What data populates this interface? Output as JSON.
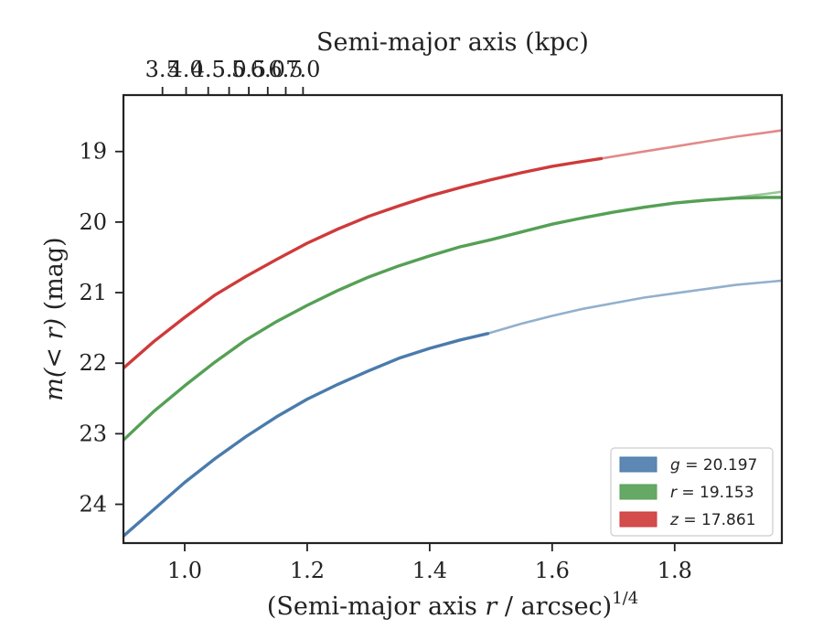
{
  "chart_data": {
    "type": "line",
    "xlabel": "(Semi-major axis r / arcsec)1/4",
    "xlabel_parts": {
      "pre": "(Semi-major axis ",
      "var": "r",
      "post": " / arcsec)",
      "sup": "1/4"
    },
    "ylabel": "m(< r) (mag)",
    "ylabel_parts": {
      "math": "m(< r)",
      "unit": " (mag)"
    },
    "top_xlabel": "Semi-major axis (kpc)",
    "xlim": [
      0.9,
      1.975
    ],
    "ylim": [
      24.55,
      18.2
    ],
    "x_ticks": [
      1.0,
      1.2,
      1.4,
      1.6,
      1.8
    ],
    "x_tick_labels": [
      "1.0",
      "1.2",
      "1.4",
      "1.6",
      "1.8"
    ],
    "y_ticks": [
      19,
      20,
      21,
      22,
      23,
      24
    ],
    "y_tick_labels": [
      "19",
      "20",
      "21",
      "22",
      "23",
      "24"
    ],
    "top_ticks": [
      3.5,
      4.0,
      4.5,
      5.0,
      5.5,
      6.0,
      6.5,
      7.0
    ],
    "top_tick_labels": [
      "3.5",
      "4.0",
      "4.5",
      "5.0",
      "5.5",
      "6.0",
      "6.5",
      "7.0"
    ],
    "top_tick_x_values": [
      0.9637,
      1.0023,
      1.0384,
      1.0725,
      1.1047,
      1.1356,
      1.165,
      1.1932
    ],
    "grid": false,
    "legend_position": "lower right",
    "series": [
      {
        "name": "g = 20.197",
        "band": "g",
        "value": "20.197",
        "color": "#4a7bab",
        "x": [
          0.9,
          0.95,
          1.0,
          1.05,
          1.1,
          1.15,
          1.2,
          1.25,
          1.3,
          1.35,
          1.4,
          1.45,
          1.495
        ],
        "y": [
          24.45,
          24.07,
          23.69,
          23.35,
          23.04,
          22.76,
          22.51,
          22.3,
          22.11,
          21.93,
          21.79,
          21.67,
          21.58
        ],
        "x_ext": [
          1.495,
          1.55,
          1.6,
          1.65,
          1.7,
          1.75,
          1.8,
          1.85,
          1.9,
          1.95,
          1.975
        ],
        "y_ext": [
          21.58,
          21.44,
          21.33,
          21.23,
          21.15,
          21.07,
          21.01,
          20.95,
          20.89,
          20.85,
          20.83
        ]
      },
      {
        "name": "r = 19.153",
        "band": "r",
        "value": "19.153",
        "color": "#55a055",
        "x": [
          0.9,
          0.95,
          1.0,
          1.05,
          1.1,
          1.15,
          1.2,
          1.25,
          1.3,
          1.35,
          1.4,
          1.45,
          1.5,
          1.55,
          1.6,
          1.65,
          1.7,
          1.75,
          1.8,
          1.85,
          1.9,
          1.95,
          1.975
        ],
        "y": [
          23.09,
          22.68,
          22.32,
          21.98,
          21.67,
          21.41,
          21.18,
          20.97,
          20.78,
          20.62,
          20.48,
          20.35,
          20.25,
          20.14,
          20.03,
          19.94,
          19.86,
          19.79,
          19.73,
          19.69,
          19.66,
          19.65,
          19.65
        ],
        "x_ext": [
          1.85,
          1.9,
          1.95,
          1.975
        ],
        "y_ext": [
          19.69,
          19.65,
          19.6,
          19.57
        ]
      },
      {
        "name": "z = 17.861",
        "band": "z",
        "value": "17.861",
        "color": "#cf3a3a",
        "x": [
          0.9,
          0.95,
          1.0,
          1.05,
          1.1,
          1.15,
          1.2,
          1.25,
          1.3,
          1.35,
          1.4,
          1.45,
          1.5,
          1.55,
          1.6,
          1.65,
          1.68
        ],
        "y": [
          22.07,
          21.69,
          21.35,
          21.03,
          20.77,
          20.53,
          20.3,
          20.1,
          19.92,
          19.77,
          19.63,
          19.51,
          19.4,
          19.3,
          19.21,
          19.14,
          19.1
        ],
        "x_ext": [
          1.68,
          1.75,
          1.8,
          1.85,
          1.9,
          1.95,
          1.975
        ],
        "y_ext": [
          19.1,
          19.0,
          18.93,
          18.86,
          18.79,
          18.73,
          18.7
        ]
      }
    ]
  }
}
